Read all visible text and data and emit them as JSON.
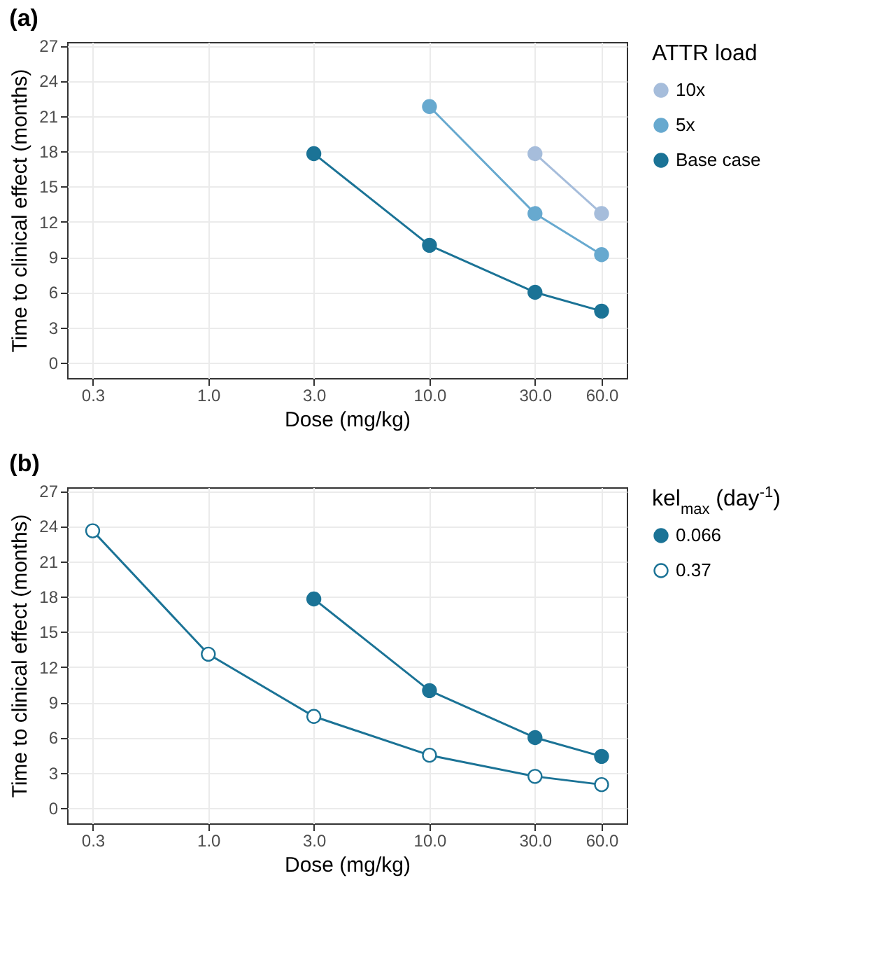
{
  "chart_data": [
    {
      "type": "line",
      "title": "(a)",
      "xlabel": "Dose (mg/kg)",
      "ylabel": "Time to clinical effect (months)",
      "legend_title": "ATTR load",
      "log": "x",
      "grid": true,
      "legend": "right",
      "marker": "circle",
      "line_style": "solid",
      "xlim": [
        0.23,
        78
      ],
      "xticks": [
        0.3,
        {
          "value": 1,
          "label": "1.0"
        },
        {
          "value": 3,
          "label": "3.0"
        },
        {
          "value": 10,
          "label": "10.0"
        },
        {
          "value": 30,
          "label": "30.0"
        },
        {
          "value": 60,
          "label": "60.0"
        }
      ],
      "ylim": [
        -1.3,
        27.3
      ],
      "yticks": [
        0,
        3,
        6,
        9,
        12,
        15,
        18,
        21,
        24,
        27
      ],
      "series": [
        {
          "name": "10x",
          "color": "#a6bddb",
          "x": [
            30,
            60
          ],
          "values": [
            17.8,
            12.7
          ]
        },
        {
          "name": "5x",
          "color": "#67a9cf",
          "x": [
            10,
            30,
            60
          ],
          "values": [
            21.8,
            12.7,
            9.2
          ]
        },
        {
          "name": "Base case",
          "color": "#1b7396",
          "x": [
            3,
            10,
            30,
            60
          ],
          "values": [
            17.8,
            10.0,
            6.0,
            4.4
          ]
        }
      ]
    },
    {
      "type": "line",
      "title": "(b)",
      "xlabel": "Dose (mg/kg)",
      "ylabel": "Time to clinical effect (months)",
      "legend_title": "kel$_{max}$ (day$^{-1}$)",
      "log": "x",
      "grid": true,
      "legend": "right",
      "marker": "circle",
      "line_style": "solid",
      "xlim": [
        0.23,
        78
      ],
      "xticks": [
        0.3,
        {
          "value": 1,
          "label": "1.0"
        },
        {
          "value": 3,
          "label": "3.0"
        },
        {
          "value": 10,
          "label": "10.0"
        },
        {
          "value": 30,
          "label": "30.0"
        },
        {
          "value": 60,
          "label": "60.0"
        }
      ],
      "ylim": [
        -1.3,
        27.3
      ],
      "yticks": [
        0,
        3,
        6,
        9,
        12,
        15,
        18,
        21,
        24,
        27
      ],
      "series": [
        {
          "name": "0.066",
          "color": "#1b7396",
          "marker": "circle",
          "x": [
            3,
            10,
            30,
            60
          ],
          "values": [
            17.8,
            10.0,
            6.0,
            4.4
          ]
        },
        {
          "name": "0.37",
          "color": "#1b7396",
          "marker": "open circle",
          "x": [
            0.3,
            1,
            3,
            10,
            30,
            60
          ],
          "values": [
            23.6,
            13.1,
            7.8,
            4.5,
            2.7,
            2.0
          ]
        }
      ]
    }
  ]
}
